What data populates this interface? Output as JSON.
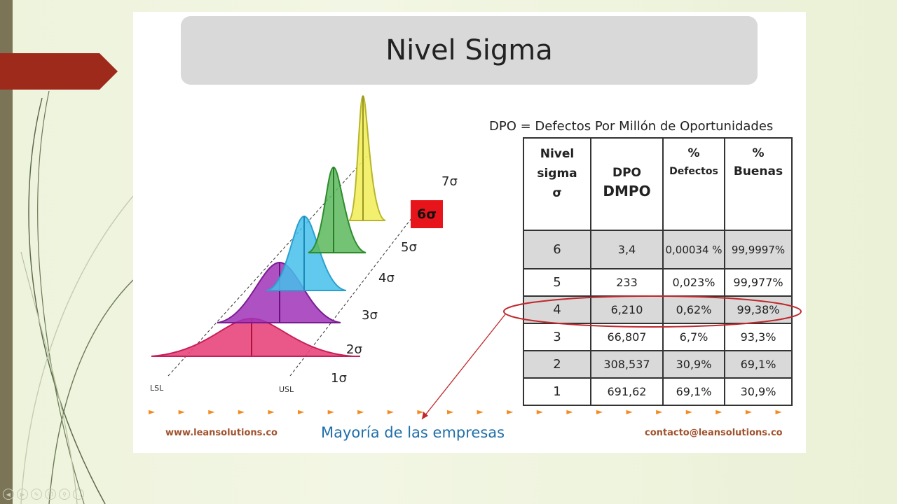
{
  "title": "Nivel Sigma",
  "dpo_definition": "DPO = Defectos  Por Millón de Oportunidades",
  "table": {
    "headers": {
      "nivel": [
        "Nivel",
        "sigma",
        "σ"
      ],
      "dpo": [
        "DPO",
        "DMPO"
      ],
      "defectos": [
        "%",
        "Defectos"
      ],
      "buenas": [
        "%",
        "Buenas"
      ]
    },
    "rows": [
      {
        "nivel": "6",
        "dpo": "3,4",
        "defectos": "0,00034 %",
        "buenas": "99,9997%"
      },
      {
        "nivel": "5",
        "dpo": "233",
        "defectos": "0,023%",
        "buenas": "99,977%"
      },
      {
        "nivel": "4",
        "dpo": "6,210",
        "defectos": "0,62%",
        "buenas": "99,38%"
      },
      {
        "nivel": "3",
        "dpo": "66,807",
        "defectos": "6,7%",
        "buenas": "93,3%"
      },
      {
        "nivel": "2",
        "dpo": "308,537",
        "defectos": "30,9%",
        "buenas": "69,1%"
      },
      {
        "nivel": "1",
        "dpo": "691,62",
        "defectos": "69,1%",
        "buenas": "30,9%"
      }
    ]
  },
  "chart_labels": {
    "s7": "7σ",
    "s6": "6σ",
    "s5": "5σ",
    "s4": "4σ",
    "s3": "3σ",
    "s2": "2σ",
    "s1": "1σ",
    "lsl": "LSL",
    "usl": "USL"
  },
  "footer": {
    "left": "www.leansolutions.co",
    "middle": "Mayoría de las empresas",
    "right": "contacto@leansolutions.co"
  },
  "colors": {
    "accent_red": "#9e2a1c",
    "ellipse": "#c0282c",
    "highlight_6sigma": "#e8141c",
    "footer_link": "#a0522d",
    "footer_mid": "#1f6fa8",
    "arrow_bullets": "#f28a1e"
  },
  "icons": [
    "prev-icon",
    "play-icon",
    "pen-icon",
    "copy-icon",
    "zoom-icon",
    "menu-icon"
  ]
}
